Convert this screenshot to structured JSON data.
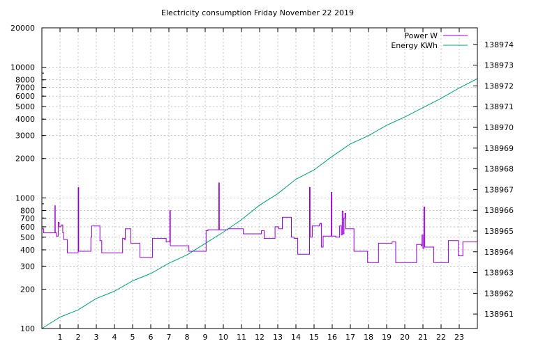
{
  "chart_data": {
    "type": "line",
    "title": "Electricity consumption Friday November 22 2019",
    "xlabel": "",
    "ylabel": "",
    "y2label": "",
    "xlim": [
      0,
      24
    ],
    "ylim": [
      100,
      20000
    ],
    "y_scale": "log",
    "y2lim": [
      138960.3,
      138974.8
    ],
    "grid": true,
    "legend_position": "top-right",
    "x_ticks": [
      1,
      2,
      3,
      4,
      5,
      6,
      7,
      8,
      9,
      10,
      11,
      12,
      13,
      14,
      15,
      16,
      17,
      18,
      19,
      20,
      21,
      22,
      23
    ],
    "y_ticks": [
      {
        "value": 100,
        "label": "100"
      },
      {
        "value": 200,
        "label": "200"
      },
      {
        "value": 300,
        "label": "300"
      },
      {
        "value": 400,
        "label": "400"
      },
      {
        "value": 500,
        "label": "500"
      },
      {
        "value": 600,
        "label": "600"
      },
      {
        "value": 700,
        "label": "700"
      },
      {
        "value": 800,
        "label": "800"
      },
      {
        "value": 1000,
        "label": "1000"
      },
      {
        "value": 2000,
        "label": "2000"
      },
      {
        "value": 3000,
        "label": "3000"
      },
      {
        "value": 4000,
        "label": "4000"
      },
      {
        "value": 5000,
        "label": "5000"
      },
      {
        "value": 6000,
        "label": "6000"
      },
      {
        "value": 7000,
        "label": "7000"
      },
      {
        "value": 8000,
        "label": "8000"
      },
      {
        "value": 10000,
        "label": "10000"
      },
      {
        "value": 20000,
        "label": "20000"
      }
    ],
    "y2_ticks": [
      138961,
      138962,
      138963,
      138964,
      138965,
      138966,
      138967,
      138968,
      138969,
      138970,
      138971,
      138972,
      138973,
      138974
    ],
    "series": [
      {
        "name": "Power W",
        "axis": "left",
        "color": "#9400d3",
        "step": true,
        "points": [
          [
            0,
            580
          ],
          [
            0.1,
            540
          ],
          [
            0.7,
            540
          ],
          [
            0.72,
            870
          ],
          [
            0.74,
            540
          ],
          [
            0.8,
            510
          ],
          [
            0.9,
            650
          ],
          [
            0.95,
            600
          ],
          [
            1.05,
            620
          ],
          [
            1.15,
            540
          ],
          [
            1.2,
            480
          ],
          [
            1.4,
            380
          ],
          [
            1.9,
            380
          ],
          [
            2.0,
            1200
          ],
          [
            2.03,
            390
          ],
          [
            2.7,
            500
          ],
          [
            2.75,
            610
          ],
          [
            3.2,
            470
          ],
          [
            3.3,
            380
          ],
          [
            4.4,
            380
          ],
          [
            4.45,
            490
          ],
          [
            4.55,
            480
          ],
          [
            4.6,
            580
          ],
          [
            4.9,
            450
          ],
          [
            5.4,
            350
          ],
          [
            6.0,
            350
          ],
          [
            6.1,
            490
          ],
          [
            6.85,
            460
          ],
          [
            7.05,
            800
          ],
          [
            7.08,
            430
          ],
          [
            8.05,
            430
          ],
          [
            8.1,
            390
          ],
          [
            9.0,
            390
          ],
          [
            9.05,
            560
          ],
          [
            9.15,
            570
          ],
          [
            9.75,
            1300
          ],
          [
            9.78,
            570
          ],
          [
            10.25,
            580
          ],
          [
            11.0,
            580
          ],
          [
            11.1,
            530
          ],
          [
            11.9,
            530
          ],
          [
            12.1,
            560
          ],
          [
            12.25,
            490
          ],
          [
            12.8,
            490
          ],
          [
            12.85,
            600
          ],
          [
            13.0,
            600
          ],
          [
            13.05,
            580
          ],
          [
            13.25,
            710
          ],
          [
            13.75,
            500
          ],
          [
            13.9,
            490
          ],
          [
            14.1,
            370
          ],
          [
            14.7,
            370
          ],
          [
            14.75,
            1200
          ],
          [
            14.78,
            500
          ],
          [
            14.9,
            610
          ],
          [
            15.0,
            610
          ],
          [
            15.3,
            630
          ],
          [
            15.35,
            640
          ],
          [
            15.4,
            420
          ],
          [
            15.5,
            510
          ],
          [
            15.9,
            510
          ],
          [
            15.95,
            1100
          ],
          [
            15.98,
            510
          ],
          [
            16.2,
            500
          ],
          [
            16.4,
            610
          ],
          [
            16.5,
            520
          ],
          [
            16.55,
            790
          ],
          [
            16.6,
            530
          ],
          [
            16.65,
            700
          ],
          [
            16.7,
            760
          ],
          [
            16.75,
            580
          ],
          [
            17.1,
            580
          ],
          [
            17.2,
            390
          ],
          [
            17.9,
            390
          ],
          [
            17.95,
            320
          ],
          [
            18.5,
            320
          ],
          [
            18.55,
            450
          ],
          [
            19.2,
            450
          ],
          [
            19.3,
            460
          ],
          [
            19.5,
            320
          ],
          [
            20.6,
            320
          ],
          [
            20.65,
            440
          ],
          [
            20.9,
            430
          ],
          [
            20.95,
            520
          ],
          [
            21.0,
            410
          ],
          [
            21.05,
            850
          ],
          [
            21.1,
            420
          ],
          [
            21.3,
            420
          ],
          [
            21.55,
            420
          ],
          [
            21.6,
            320
          ],
          [
            22.3,
            320
          ],
          [
            22.4,
            470
          ],
          [
            22.9,
            470
          ],
          [
            22.95,
            360
          ],
          [
            23.1,
            360
          ],
          [
            23.2,
            460
          ],
          [
            23.9,
            460
          ],
          [
            24.0,
            360
          ]
        ]
      },
      {
        "name": "Energy KWh",
        "axis": "right",
        "color": "#009e73",
        "step": false,
        "points": [
          [
            0,
            138960.3
          ],
          [
            1,
            138960.85
          ],
          [
            2,
            138961.2
          ],
          [
            3,
            138961.75
          ],
          [
            4,
            138962.1
          ],
          [
            5,
            138962.6
          ],
          [
            6,
            138962.95
          ],
          [
            7,
            138963.45
          ],
          [
            8,
            138963.85
          ],
          [
            9,
            138964.4
          ],
          [
            10,
            138964.95
          ],
          [
            11,
            138965.55
          ],
          [
            12,
            138966.25
          ],
          [
            13,
            138966.8
          ],
          [
            14,
            138967.5
          ],
          [
            15,
            138967.95
          ],
          [
            16,
            138968.6
          ],
          [
            17,
            138969.2
          ],
          [
            18,
            138969.6
          ],
          [
            19,
            138970.1
          ],
          [
            20,
            138970.5
          ],
          [
            21,
            138970.95
          ],
          [
            22,
            138971.4
          ],
          [
            23,
            138971.9
          ],
          [
            24,
            138972.35
          ]
        ]
      }
    ]
  }
}
